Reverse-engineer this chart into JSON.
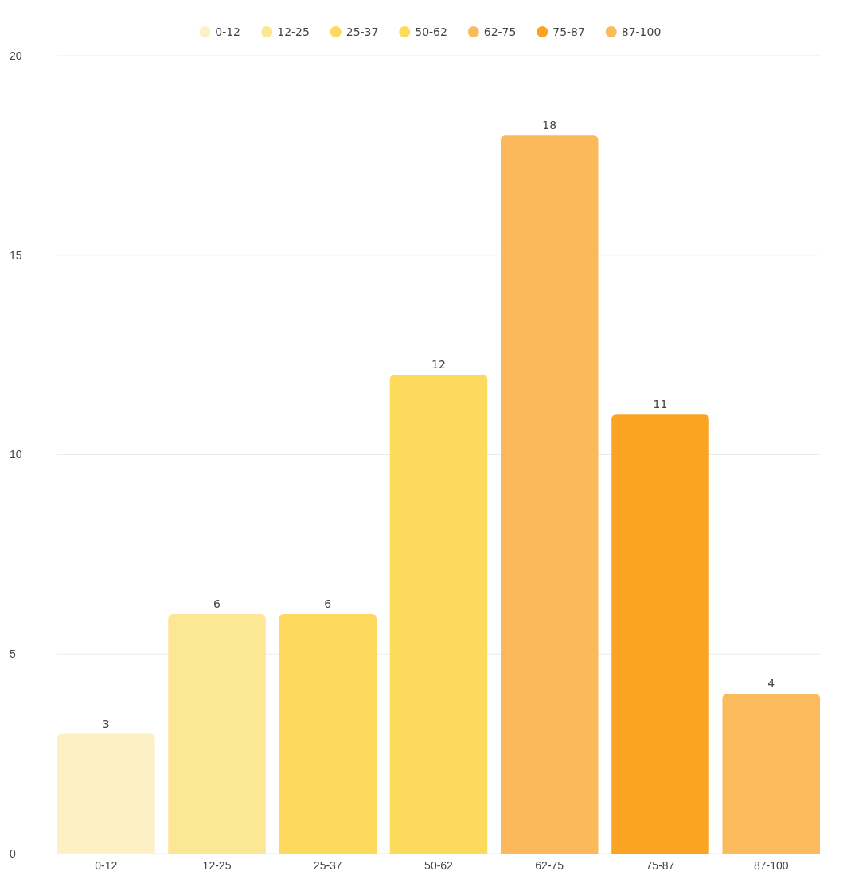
{
  "chart_data": {
    "type": "bar",
    "stacked": true,
    "categories": [
      "0-12",
      "12-25",
      "25-37",
      "50-62",
      "62-75",
      "75-87",
      "87-100"
    ],
    "series": [
      {
        "name": "0-12",
        "color": "#fdf0c4",
        "values": [
          3,
          null,
          null,
          null,
          null,
          null,
          null
        ]
      },
      {
        "name": "12-25",
        "color": "#fce795",
        "values": [
          null,
          6,
          null,
          null,
          null,
          null,
          null
        ]
      },
      {
        "name": "25-37",
        "color": "#fcd95c",
        "values": [
          null,
          null,
          6,
          null,
          null,
          null,
          null
        ]
      },
      {
        "name": "50-62",
        "color": "#fcdb5c",
        "values": [
          null,
          null,
          null,
          12,
          null,
          null,
          null
        ]
      },
      {
        "name": "62-75",
        "color": "#fbb95c",
        "values": [
          null,
          null,
          null,
          null,
          18,
          null,
          null
        ]
      },
      {
        "name": "75-87",
        "color": "#fba424",
        "values": [
          null,
          null,
          null,
          null,
          null,
          11,
          null
        ]
      },
      {
        "name": "87-100",
        "color": "#fbba5c",
        "values": [
          null,
          null,
          null,
          null,
          null,
          null,
          4
        ]
      }
    ],
    "ylim": [
      0,
      20
    ],
    "yticks": [
      0,
      5,
      10,
      15,
      20
    ],
    "grid": "y",
    "legend": "top",
    "data_labels": true
  }
}
